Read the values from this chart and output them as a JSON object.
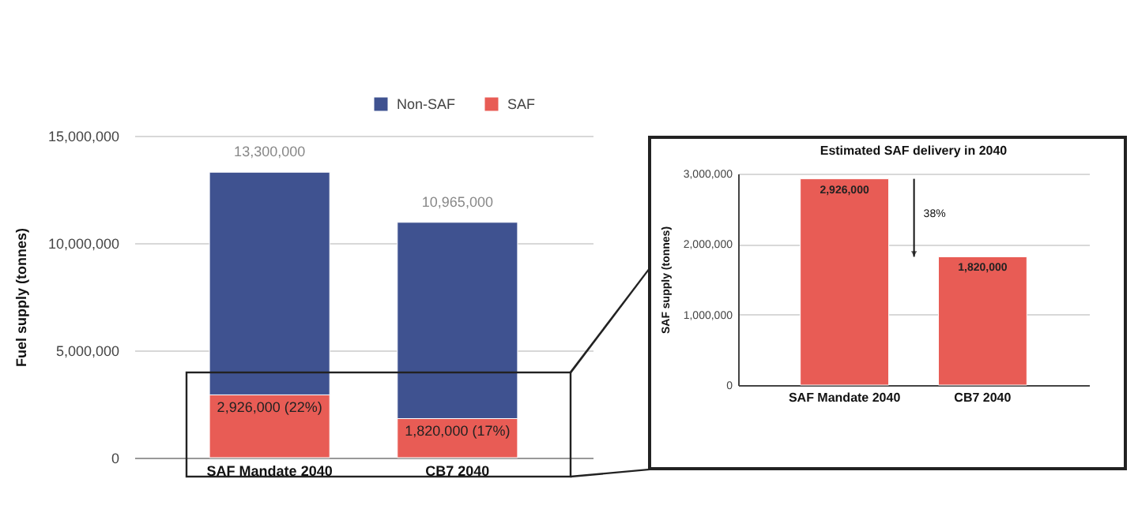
{
  "chart_data": [
    {
      "type": "bar",
      "ylabel": "Fuel supply (tonnes)",
      "categories": [
        "SAF Mandate 2040",
        "CB7 2040"
      ],
      "stacked": true,
      "series": [
        {
          "name": "SAF",
          "color": "#e85c55",
          "values": [
            2926000,
            1820000
          ],
          "value_labels": [
            "2,926,000 (22%)",
            "1,820,000 (17%)"
          ]
        },
        {
          "name": "Non-SAF",
          "color": "#3f5290",
          "values": [
            10374000,
            9145000
          ]
        }
      ],
      "totals": [
        "13,300,000",
        "10,965,000"
      ],
      "ylim": [
        0,
        15000000
      ],
      "yticks": [
        {
          "value": 0,
          "label": "0"
        },
        {
          "value": 5000000,
          "label": "5,000,000"
        },
        {
          "value": 10000000,
          "label": "10,000,000"
        },
        {
          "value": 15000000,
          "label": "15,000,000"
        }
      ],
      "grid": "y",
      "legend": "top right"
    },
    {
      "type": "bar",
      "title": "Estimated SAF delivery in 2040",
      "ylabel": "SAF supply (tonnes)",
      "categories": [
        "SAF Mandate 2040",
        "CB7 2040"
      ],
      "series": [
        {
          "color": "#e85c55",
          "values": [
            2926000,
            1820000
          ],
          "value_labels": [
            "2,926,000",
            "1,820,000"
          ]
        }
      ],
      "annotations": [
        "38%"
      ],
      "ylim": [
        0,
        3000000
      ],
      "yticks": [
        {
          "value": 0,
          "label": "0"
        },
        {
          "value": 1000000,
          "label": "1,000,000"
        },
        {
          "value": 2000000,
          "label": "2,000,000"
        },
        {
          "value": 3000000,
          "label": "3,000,000"
        }
      ],
      "grid": "y"
    }
  ]
}
